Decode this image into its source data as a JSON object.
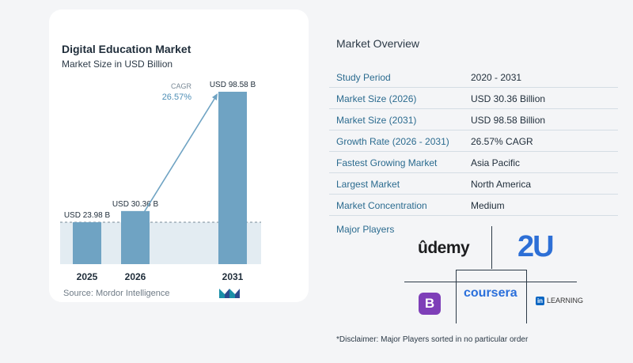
{
  "chart_data": {
    "type": "bar",
    "title": "Digital Education Market",
    "subtitle": "Market Size in USD Billion",
    "categories": [
      "2025",
      "2026",
      "2031"
    ],
    "values": [
      23.98,
      30.36,
      98.58
    ],
    "value_labels": [
      "USD 23.98 B",
      "USD 30.36 B",
      "USD 98.58 B"
    ],
    "ylim": [
      0,
      100
    ],
    "cagr_label": "CAGR",
    "cagr_value": "26.57%",
    "colors": {
      "bar": "#6fa3c3",
      "band": "#e3ecf2",
      "arrow": "#6fa3c3"
    },
    "source": "Source: Mordor Intelligence"
  },
  "overview": {
    "title": "Market Overview",
    "rows": [
      {
        "label": "Study Period",
        "value": "2020 - 2031"
      },
      {
        "label": "Market Size (2026)",
        "value": "USD 30.36 Billion"
      },
      {
        "label": "Market Size (2031)",
        "value": "USD 98.58 Billion"
      },
      {
        "label": "Growth Rate (2026 - 2031)",
        "value": "26.57% CAGR"
      },
      {
        "label": "Fastest Growing Market",
        "value": "Asia Pacific"
      },
      {
        "label": "Largest Market",
        "value": "North America"
      },
      {
        "label": "Market Concentration",
        "value": "Medium"
      }
    ],
    "players_label": "Major Players"
  },
  "players": {
    "udemy": "ûdemy",
    "twou": "2U",
    "coursera": "coursera",
    "byjus": "B",
    "linkedin_in": "in",
    "linkedin_text": "LEARNING"
  },
  "disclaimer": "*Disclaimer: Major Players sorted in no particular order"
}
